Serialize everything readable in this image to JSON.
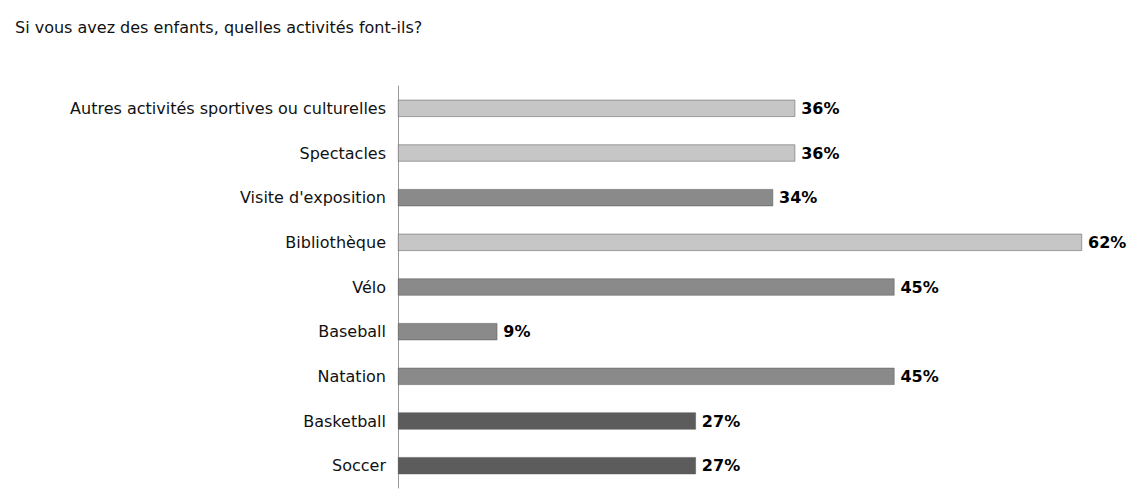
{
  "chart_data": {
    "type": "bar",
    "title": "Si vous avez des enfants, quelles activités font-ils?",
    "orientation": "horizontal",
    "categories": [
      "Autres activités sportives ou culturelles",
      "Spectacles",
      "Visite d'exposition",
      "Bibliothèque",
      "Vélo",
      "Baseball",
      "Natation",
      "Basketball",
      "Soccer"
    ],
    "values": [
      36,
      36,
      34,
      62,
      45,
      9,
      45,
      27,
      27
    ],
    "value_labels": [
      "36%",
      "36%",
      "34%",
      "62%",
      "45%",
      "9%",
      "45%",
      "27%",
      "27%"
    ],
    "colors": [
      "#c6c6c6",
      "#c6c6c6",
      "#8a8a8a",
      "#c6c6c6",
      "#8a8a8a",
      "#8a8a8a",
      "#8a8a8a",
      "#5c5c5c",
      "#5c5c5c"
    ],
    "xlim": [
      0,
      62
    ],
    "grid": false,
    "data_labels": true,
    "tick_labels": "y"
  }
}
